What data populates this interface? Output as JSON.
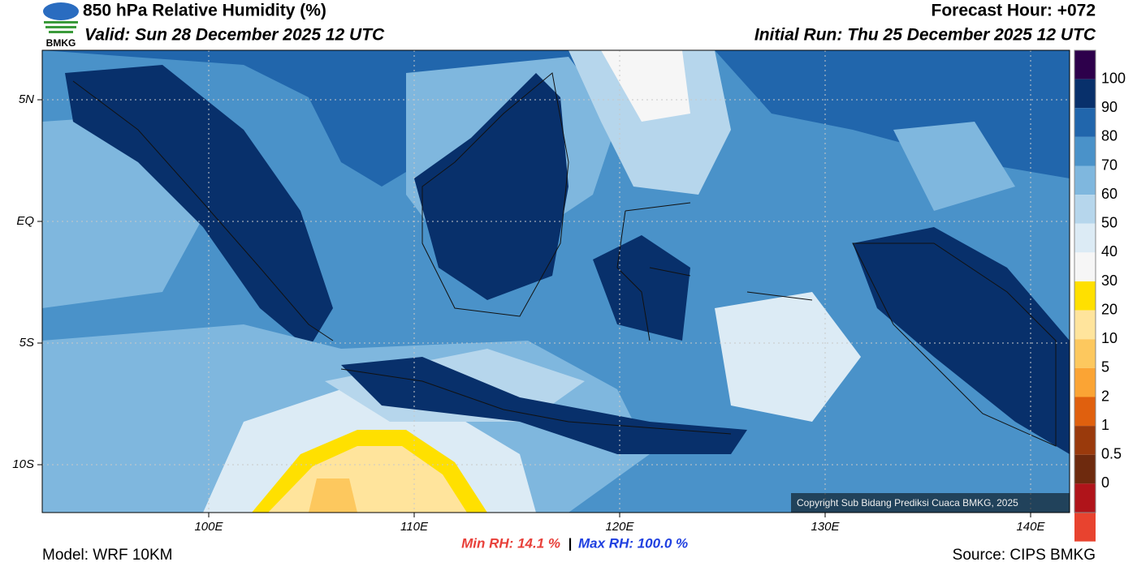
{
  "header": {
    "title": "850 hPa Relative Humidity (%)",
    "valid": "Valid: Sun 28 December 2025 12 UTC",
    "forecast_hour": "Forecast Hour: +072",
    "initial_run": "Initial Run: Thu 25 December 2025 12 UTC",
    "logo": "BMKG"
  },
  "map": {
    "lat_labels": [
      "5N",
      "EQ",
      "5S",
      "10S"
    ],
    "lon_labels": [
      "100E",
      "110E",
      "120E",
      "130E",
      "140E"
    ],
    "copyright": "Copyright Sub Bidang Prediksi Cuaca BMKG, 2025"
  },
  "colorbar": {
    "labels": [
      "100",
      "90",
      "80",
      "70",
      "60",
      "50",
      "40",
      "30",
      "20",
      "10",
      "5",
      "2",
      "1",
      "0.5",
      "0"
    ],
    "colors": [
      "#2d004b",
      "#08306b",
      "#2166ac",
      "#4a92c9",
      "#7fb7de",
      "#b6d6ec",
      "#dcebf5",
      "#f6f6f6",
      "#ffe000",
      "#ffe49c",
      "#fdc85e",
      "#fba434",
      "#e0600e",
      "#9a3a0c",
      "#6e2a0e",
      "#b0141a",
      "#e8432f"
    ]
  },
  "footer": {
    "model": "Model: WRF 10KM",
    "min_rh": "Min RH:  14.1 %",
    "separator": "|",
    "max_rh": "Max RH: 100.0 %",
    "source": "Source: CIPS BMKG"
  }
}
